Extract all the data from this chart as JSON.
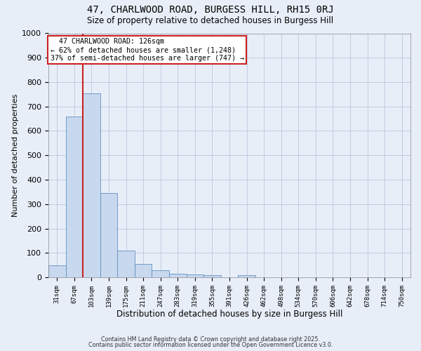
{
  "title1": "47, CHARLWOOD ROAD, BURGESS HILL, RH15 0RJ",
  "title2": "Size of property relative to detached houses in Burgess Hill",
  "xlabel": "Distribution of detached houses by size in Burgess Hill",
  "ylabel": "Number of detached properties",
  "bar_labels": [
    "31sqm",
    "67sqm",
    "103sqm",
    "139sqm",
    "175sqm",
    "211sqm",
    "247sqm",
    "283sqm",
    "319sqm",
    "355sqm",
    "391sqm",
    "426sqm",
    "462sqm",
    "498sqm",
    "534sqm",
    "570sqm",
    "606sqm",
    "642sqm",
    "678sqm",
    "714sqm",
    "750sqm"
  ],
  "bar_values": [
    50,
    660,
    755,
    345,
    110,
    55,
    30,
    15,
    12,
    8,
    0,
    8,
    0,
    0,
    0,
    0,
    0,
    0,
    0,
    0,
    0
  ],
  "bar_color": "#c8d8ee",
  "bar_edgecolor": "#6090c0",
  "ylim": [
    0,
    1000
  ],
  "yticks": [
    0,
    100,
    200,
    300,
    400,
    500,
    600,
    700,
    800,
    900,
    1000
  ],
  "vline_color": "#cc2222",
  "annotation_title": "47 CHARLWOOD ROAD: 126sqm",
  "annotation_line1": "← 62% of detached houses are smaller (1,248)",
  "annotation_line2": "37% of semi-detached houses are larger (747) →",
  "annotation_box_color": "#ffffff",
  "annotation_box_edgecolor": "#cc2222",
  "footer1": "Contains HM Land Registry data © Crown copyright and database right 2025.",
  "footer2": "Contains public sector information licensed under the Open Government Licence v3.0.",
  "background_color": "#e8eef8",
  "plot_bg_color": "#e8eef8",
  "grid_color": "#c0cce0"
}
